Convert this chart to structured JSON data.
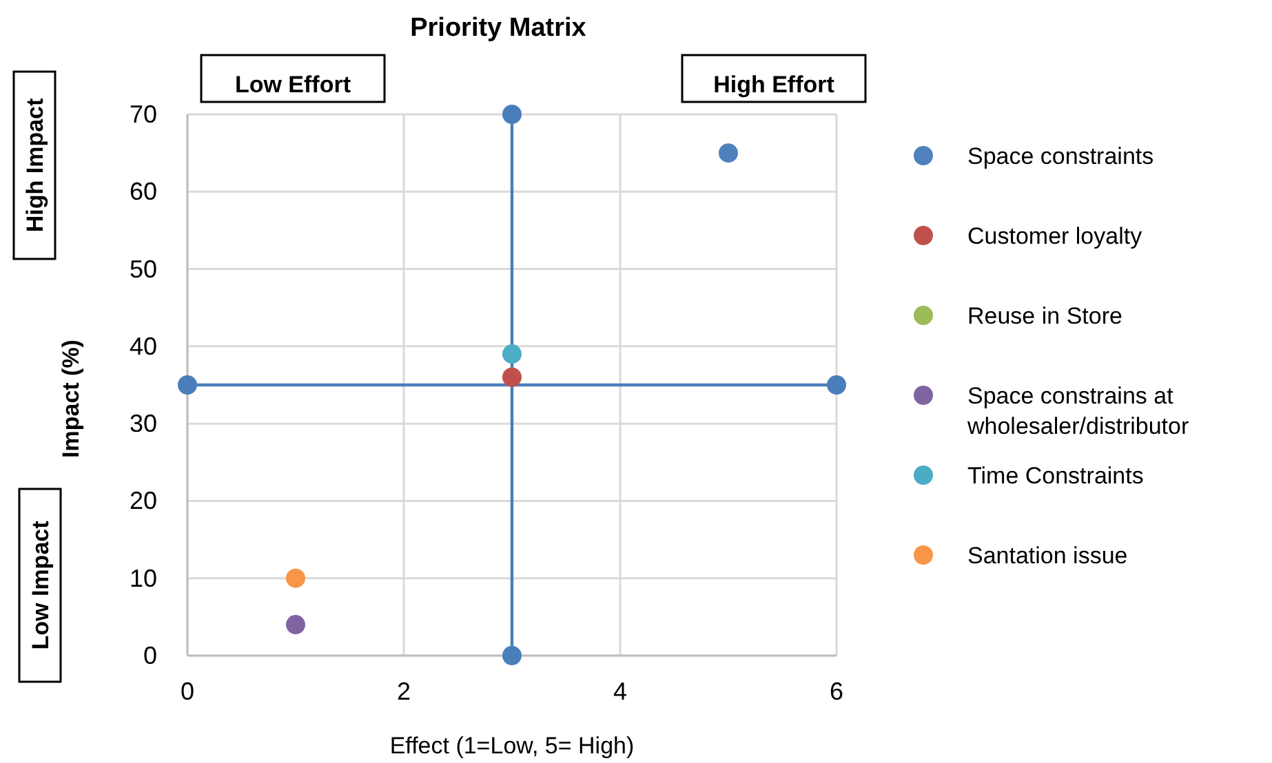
{
  "chart_data": {
    "type": "scatter",
    "title": "Priority Matrix",
    "xlabel": "Effect (1=Low, 5= High)",
    "ylabel": "Impact (%)",
    "xlim": [
      0,
      6
    ],
    "xticks": [
      0,
      2,
      4,
      6
    ],
    "ylim": [
      0,
      70
    ],
    "yticks": [
      0,
      10,
      20,
      30,
      40,
      50,
      60,
      70
    ],
    "grid": true,
    "legend": "right",
    "marker": "circle",
    "annotations": [
      "Low Effort",
      "High Effort",
      "High Impact",
      "Low Impact"
    ],
    "series": [
      {
        "name": "Space constraints",
        "color": "#4f81bd",
        "x": [
          5
        ],
        "values": [
          65
        ]
      },
      {
        "name": "Customer loyalty",
        "color": "#c0504d",
        "x": [
          3
        ],
        "values": [
          36
        ]
      },
      {
        "name": "Reuse in Store",
        "color": "#9bbb59"
      },
      {
        "name": "Space constrains at wholesaler/distributor",
        "color": "#8064a2",
        "x": [
          1
        ],
        "values": [
          4
        ]
      },
      {
        "name": "Time Constraints",
        "color": "#4bacc6",
        "x": [
          3
        ],
        "values": [
          39
        ]
      },
      {
        "name": "Santation issue",
        "color": "#f79646",
        "x": [
          1
        ],
        "values": [
          10
        ]
      },
      {
        "type": "line",
        "color": "#4a7ebb",
        "x": [
          0,
          6
        ],
        "values": [
          35,
          35
        ]
      },
      {
        "type": "line",
        "color": "#4a7ebb",
        "x": [
          3,
          3
        ],
        "values": [
          0,
          70
        ]
      }
    ]
  }
}
